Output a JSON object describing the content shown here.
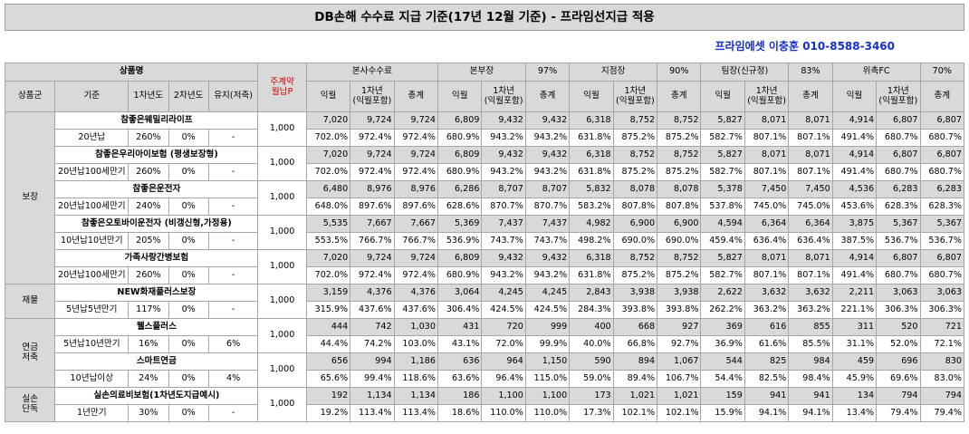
{
  "title": "DB손해 수수료 지급 기준(17년 12월 기준) - 프라임선지급 적용",
  "contact": "프라임에셋 이충훈 010-8588-3460",
  "header": {
    "product_name": "상품명",
    "contract_premium": "주계약\n월납P",
    "product_group": "상품군",
    "criteria": "기준",
    "year1": "1차년도",
    "year2": "2차년도",
    "maintain": "유지(저축)",
    "channels": [
      {
        "name": "본사수수료",
        "rate": ""
      },
      {
        "name": "본부장",
        "rate": "97%"
      },
      {
        "name": "지점장",
        "rate": "90%"
      },
      {
        "name": "팀장(신규정)",
        "rate": "83%"
      },
      {
        "name": "위촉FC",
        "rate": "70%"
      }
    ],
    "col_next_month": "익월",
    "col_year1": "1차년\n(익월포함)",
    "col_total": "총계"
  },
  "groups": [
    {
      "name": "보장",
      "products": [
        {
          "name": "참좋은웨밀리라이프",
          "criteria": "20년납",
          "y1": "260%",
          "y2": "0%",
          "maint": "-",
          "premium": "1,000",
          "amounts": [
            "7,020",
            "9,724",
            "9,724",
            "6,809",
            "9,432",
            "9,432",
            "6,318",
            "8,752",
            "8,752",
            "5,827",
            "8,071",
            "8,071",
            "4,914",
            "6,807",
            "6,807"
          ],
          "percents": [
            "702.0%",
            "972.4%",
            "972.4%",
            "680.9%",
            "943.2%",
            "943.2%",
            "631.8%",
            "875.2%",
            "875.2%",
            "582.7%",
            "807.1%",
            "807.1%",
            "491.4%",
            "680.7%",
            "680.7%"
          ]
        },
        {
          "name": "참좋은우리아이보험 (평생보장형)",
          "criteria": "20년납100세만기",
          "y1": "260%",
          "y2": "0%",
          "maint": "-",
          "premium": "1,000",
          "amounts": [
            "7,020",
            "9,724",
            "9,724",
            "6,809",
            "9,432",
            "9,432",
            "6,318",
            "8,752",
            "8,752",
            "5,827",
            "8,071",
            "8,071",
            "4,914",
            "6,807",
            "6,807"
          ],
          "percents": [
            "702.0%",
            "972.4%",
            "972.4%",
            "680.9%",
            "943.2%",
            "943.2%",
            "631.8%",
            "875.2%",
            "875.2%",
            "582.7%",
            "807.1%",
            "807.1%",
            "491.4%",
            "680.7%",
            "680.7%"
          ]
        },
        {
          "name": "참좋은운전자",
          "criteria": "20년납100세만기",
          "y1": "240%",
          "y2": "0%",
          "maint": "-",
          "premium": "1,000",
          "amounts": [
            "6,480",
            "8,976",
            "8,976",
            "6,286",
            "8,707",
            "8,707",
            "5,832",
            "8,078",
            "8,078",
            "5,378",
            "7,450",
            "7,450",
            "4,536",
            "6,283",
            "6,283"
          ],
          "percents": [
            "648.0%",
            "897.6%",
            "897.6%",
            "628.6%",
            "870.7%",
            "870.7%",
            "583.2%",
            "807.8%",
            "807.8%",
            "537.8%",
            "745.0%",
            "745.0%",
            "453.6%",
            "628.3%",
            "628.3%"
          ]
        },
        {
          "name": "참좋은오토바이운전자 (비갱신형,가정용)",
          "criteria": "10년납10년만기",
          "y1": "205%",
          "y2": "0%",
          "maint": "-",
          "premium": "1,000",
          "amounts": [
            "5,535",
            "7,667",
            "7,667",
            "5,369",
            "7,437",
            "7,437",
            "4,982",
            "6,900",
            "6,900",
            "4,594",
            "6,364",
            "6,364",
            "3,875",
            "5,367",
            "5,367"
          ],
          "percents": [
            "553.5%",
            "766.7%",
            "766.7%",
            "536.9%",
            "743.7%",
            "743.7%",
            "498.2%",
            "690.0%",
            "690.0%",
            "459.4%",
            "636.4%",
            "636.4%",
            "387.5%",
            "536.7%",
            "536.7%"
          ]
        },
        {
          "name": "가족사랑간병보험",
          "criteria": "20년납100세만기",
          "y1": "260%",
          "y2": "0%",
          "maint": "-",
          "premium": "1,000",
          "amounts": [
            "7,020",
            "9,724",
            "9,724",
            "6,809",
            "9,432",
            "9,432",
            "6,318",
            "8,752",
            "8,752",
            "5,827",
            "8,071",
            "8,071",
            "4,914",
            "6,807",
            "6,807"
          ],
          "percents": [
            "702.0%",
            "972.4%",
            "972.4%",
            "680.9%",
            "943.2%",
            "943.2%",
            "631.8%",
            "875.2%",
            "875.2%",
            "582.7%",
            "807.1%",
            "807.1%",
            "491.4%",
            "680.7%",
            "680.7%"
          ]
        }
      ]
    },
    {
      "name": "재물",
      "products": [
        {
          "name": "NEW화재플러스보장",
          "criteria": "5년납5년만기",
          "y1": "117%",
          "y2": "0%",
          "maint": "-",
          "premium": "1,000",
          "amounts": [
            "3,159",
            "4,376",
            "4,376",
            "3,064",
            "4,245",
            "4,245",
            "2,843",
            "3,938",
            "3,938",
            "2,622",
            "3,632",
            "3,632",
            "2,211",
            "3,063",
            "3,063"
          ],
          "percents": [
            "315.9%",
            "437.6%",
            "437.6%",
            "306.4%",
            "424.5%",
            "424.5%",
            "284.3%",
            "393.8%",
            "393.8%",
            "262.2%",
            "363.2%",
            "363.2%",
            "221.1%",
            "306.3%",
            "306.3%"
          ]
        }
      ]
    },
    {
      "name": "연금\n저축",
      "products": [
        {
          "name": "웰스플러스",
          "criteria": "5년납10년만기",
          "y1": "16%",
          "y2": "0%",
          "maint": "6%",
          "premium": "1,000",
          "amounts": [
            "444",
            "742",
            "1,030",
            "431",
            "720",
            "999",
            "400",
            "668",
            "927",
            "369",
            "616",
            "855",
            "311",
            "520",
            "721"
          ],
          "percents": [
            "44.4%",
            "74.2%",
            "103.0%",
            "43.1%",
            "72.0%",
            "99.9%",
            "40.0%",
            "66.8%",
            "92.7%",
            "36.9%",
            "61.6%",
            "85.5%",
            "31.1%",
            "52.0%",
            "72.1%"
          ]
        },
        {
          "name": "스마트연금",
          "criteria": "10년납이상",
          "y1": "24%",
          "y2": "0%",
          "maint": "4%",
          "premium": "1,000",
          "amounts": [
            "656",
            "994",
            "1,186",
            "636",
            "964",
            "1,150",
            "590",
            "894",
            "1,067",
            "544",
            "825",
            "984",
            "459",
            "696",
            "830"
          ],
          "percents": [
            "65.6%",
            "99.4%",
            "118.6%",
            "63.6%",
            "96.4%",
            "115.0%",
            "59.0%",
            "89.4%",
            "106.7%",
            "54.4%",
            "82.5%",
            "98.4%",
            "45.9%",
            "69.6%",
            "83.0%"
          ]
        }
      ]
    },
    {
      "name": "실손\n단독",
      "products": [
        {
          "name": "실손의료비보험(1차년도지급예시)",
          "criteria": "1년만기",
          "y1": "30%",
          "y2": "0%",
          "maint": "-",
          "premium": "1,000",
          "amounts": [
            "192",
            "1,134",
            "1,134",
            "186",
            "1,100",
            "1,100",
            "173",
            "1,021",
            "1,021",
            "159",
            "941",
            "941",
            "134",
            "794",
            "794"
          ],
          "percents": [
            "19.2%",
            "113.4%",
            "113.4%",
            "18.6%",
            "110.0%",
            "110.0%",
            "17.3%",
            "102.1%",
            "102.1%",
            "15.9%",
            "94.1%",
            "94.1%",
            "13.4%",
            "79.4%",
            "79.4%"
          ]
        }
      ]
    }
  ]
}
